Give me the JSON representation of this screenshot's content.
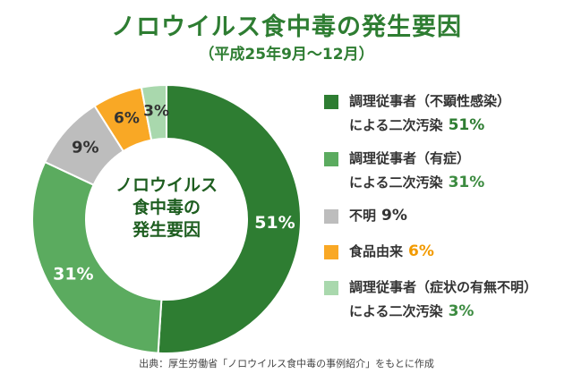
{
  "title": "ノロウイルス食中毒の発生要因",
  "subtitle": "（平成25年9月〜12月）",
  "center_label": [
    "ノロウイルス",
    "食中毒の",
    "発生要因"
  ],
  "legend": [
    {
      "line1": "調理従事者（不顕性感染）",
      "line2": "による二次汚染",
      "pct": "51%",
      "color": "#2e7d32",
      "pct_color": "#2e7d32"
    },
    {
      "line1": "調理従事者（有症）",
      "line2": "による二次汚染",
      "pct": "31%",
      "color": "#5bab5f",
      "pct_color": "#3c8b40"
    },
    {
      "line1": "不明",
      "line2": "",
      "pct": "9%",
      "color": "#bdbdbd",
      "pct_color": "#333333"
    },
    {
      "line1": "食品由来",
      "line2": "",
      "pct": "6%",
      "color": "#f9a825",
      "pct_color": "#f29a00"
    },
    {
      "line1": "調理従事者（症状の有無不明）",
      "line2": "による二次汚染",
      "pct": "3%",
      "color": "#a9d8ad",
      "pct_color": "#3c8b40"
    }
  ],
  "source": "出典：厚生労働省「ノロウイルス食中毒の事例紹介」をもとに作成",
  "chart_data": {
    "type": "pie",
    "title": "ノロウイルス食中毒の発生要因",
    "subtitle": "（平成25年9月〜12月）",
    "categories": [
      "調理従事者（不顕性感染）による二次汚染",
      "調理従事者（有症）による二次汚染",
      "不明",
      "食品由来",
      "調理従事者（症状の有無不明）による二次汚染"
    ],
    "values": [
      51,
      31,
      9,
      6,
      3
    ],
    "data_labels": [
      "51%",
      "31%",
      "9%",
      "6%",
      "3%"
    ],
    "colors": [
      "#2e7d32",
      "#5bab5f",
      "#bdbdbd",
      "#f9a825",
      "#a9d8ad"
    ],
    "legend_position": "right"
  }
}
